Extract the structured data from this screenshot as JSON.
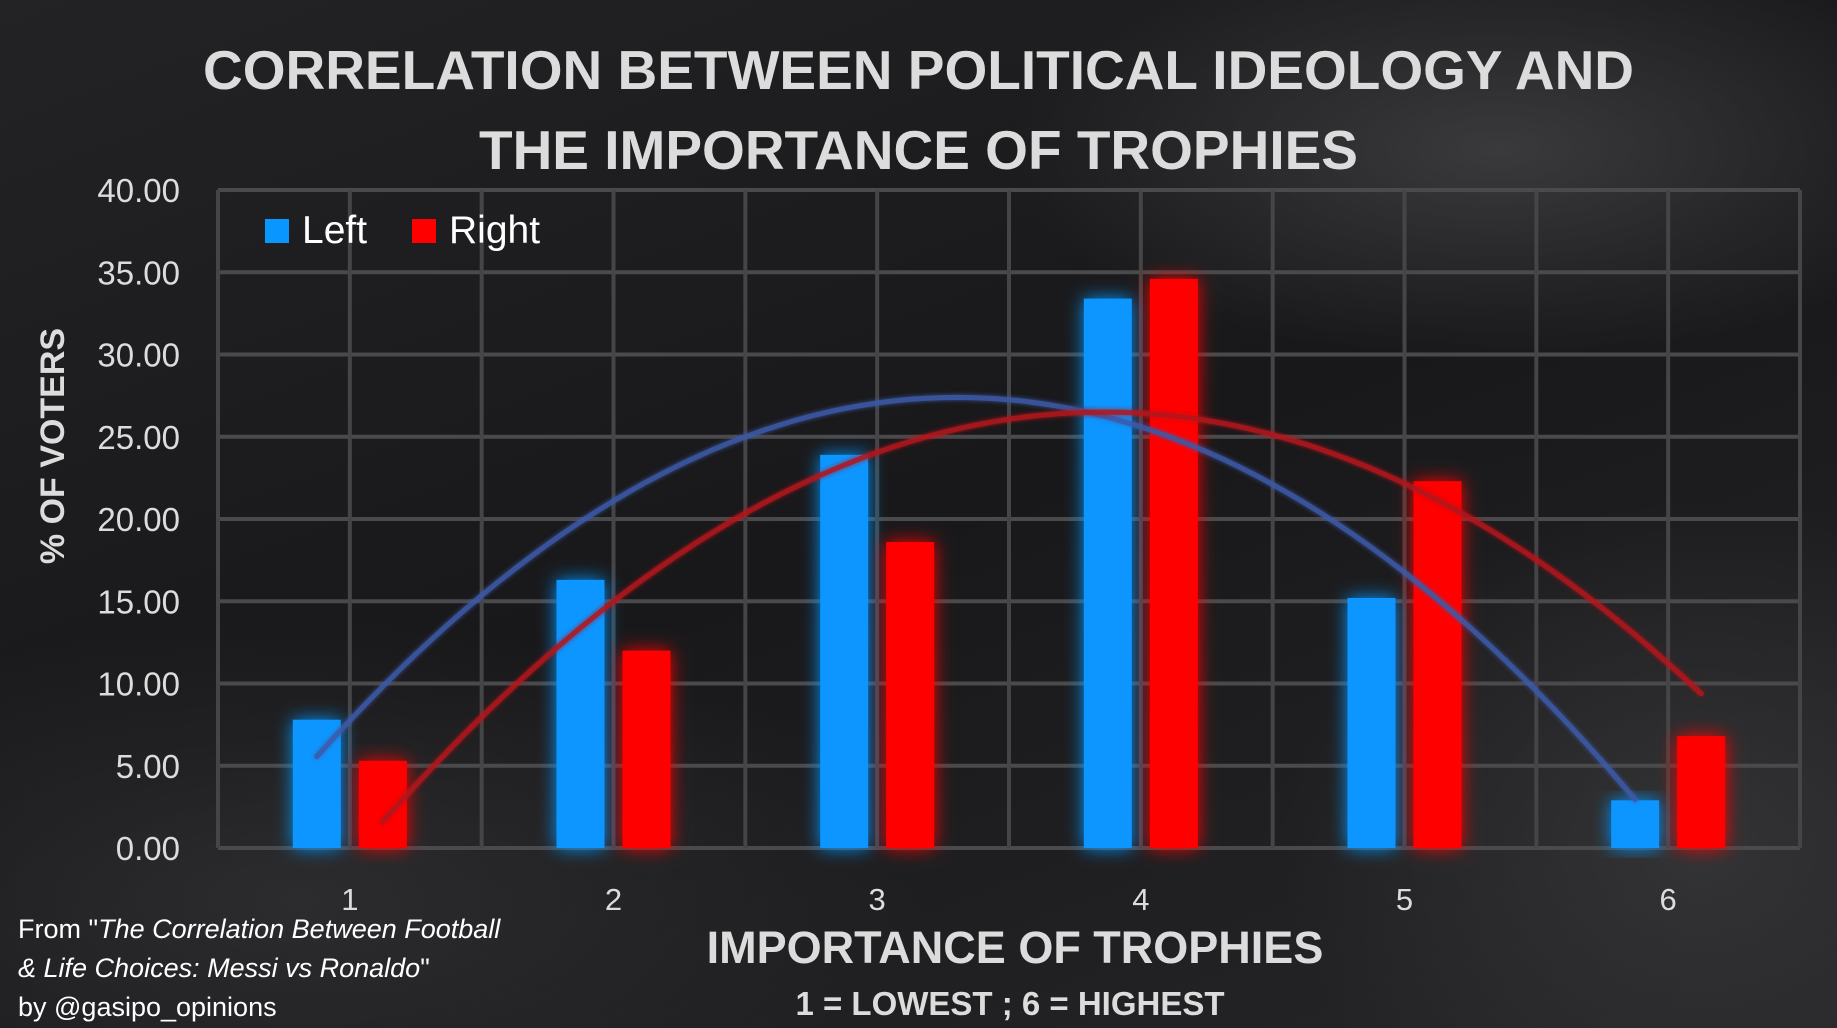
{
  "chart_data": {
    "type": "bar",
    "title_lines": [
      "CORRELATION BETWEEN POLITICAL IDEOLOGY AND",
      "THE IMPORTANCE OF TROPHIES"
    ],
    "categories": [
      "1",
      "2",
      "3",
      "4",
      "5",
      "6"
    ],
    "series": [
      {
        "name": "Left",
        "values": [
          7.8,
          16.3,
          23.9,
          33.4,
          15.2,
          2.9
        ],
        "color": "#0a96ff"
      },
      {
        "name": "Right",
        "values": [
          5.3,
          12.0,
          18.6,
          34.6,
          22.3,
          6.8
        ],
        "color": "#ff0000"
      }
    ],
    "trendlines": [
      {
        "series": "Left",
        "type": "polynomial-2",
        "color": "#3d5aa8"
      },
      {
        "series": "Right",
        "type": "polynomial-2",
        "color": "#b3161f"
      }
    ],
    "ylim": [
      0,
      40
    ],
    "yticks": [
      "0.00",
      "5.00",
      "10.00",
      "15.00",
      "20.00",
      "25.00",
      "30.00",
      "35.00",
      "40.00"
    ],
    "ylabel": "% OF VOTERS",
    "xlabel": "IMPORTANCE OF TROPHIES",
    "xlabel_note": "1 = LOWEST ; 6 = HIGHEST",
    "legend_position": "top-left",
    "grid": true
  },
  "source": {
    "line1_prefix": "From \"",
    "line1_italic": "The Correlation Between Football",
    "line2_italic": "& Life Choices: Messi vs Ronaldo",
    "line2_suffix": "\"",
    "line3": "by @gasipo_opinions"
  }
}
